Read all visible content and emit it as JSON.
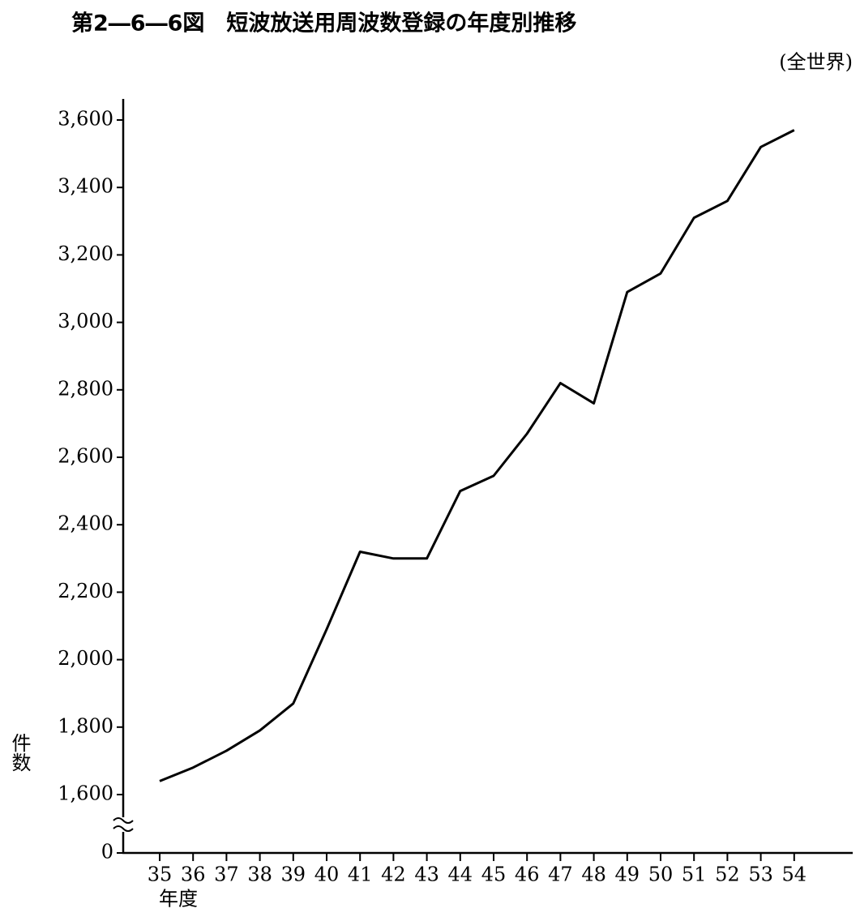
{
  "chart_data": {
    "type": "line",
    "title": "第2―6―6図　短波放送用周波数登録の年度別推移",
    "subtitle": "(全世界)",
    "y_label": "件数",
    "x_label": "年度",
    "categories": [
      "35",
      "36",
      "37",
      "38",
      "39",
      "40",
      "41",
      "42",
      "43",
      "44",
      "45",
      "46",
      "47",
      "48",
      "49",
      "50",
      "51",
      "52",
      "53",
      "54"
    ],
    "series": [
      {
        "name": "短波放送用周波数登録",
        "color": "#000000",
        "values": [
          1640,
          1680,
          1730,
          1790,
          1870,
          2090,
          2320,
          2300,
          2300,
          2500,
          2545,
          2670,
          2820,
          2760,
          3090,
          3145,
          3310,
          3360,
          3520,
          3570
        ]
      }
    ],
    "ylim": [
      0,
      3660
    ],
    "axis_break": [
      0,
      1600
    ],
    "yticks": [
      0,
      {
        "value": 1600,
        "label": "1,600"
      },
      {
        "value": 1800,
        "label": "1,800"
      },
      {
        "value": 2000,
        "label": "2,000"
      },
      {
        "value": 2200,
        "label": "2,200"
      },
      {
        "value": 2400,
        "label": "2,400"
      },
      {
        "value": 2600,
        "label": "2,600"
      },
      {
        "value": 2800,
        "label": "2,800"
      },
      {
        "value": 3000,
        "label": "3,000"
      },
      {
        "value": 3200,
        "label": "3,200"
      },
      {
        "value": 3400,
        "label": "3,400"
      },
      {
        "value": 3600,
        "label": "3,600"
      }
    ],
    "grid": false
  }
}
